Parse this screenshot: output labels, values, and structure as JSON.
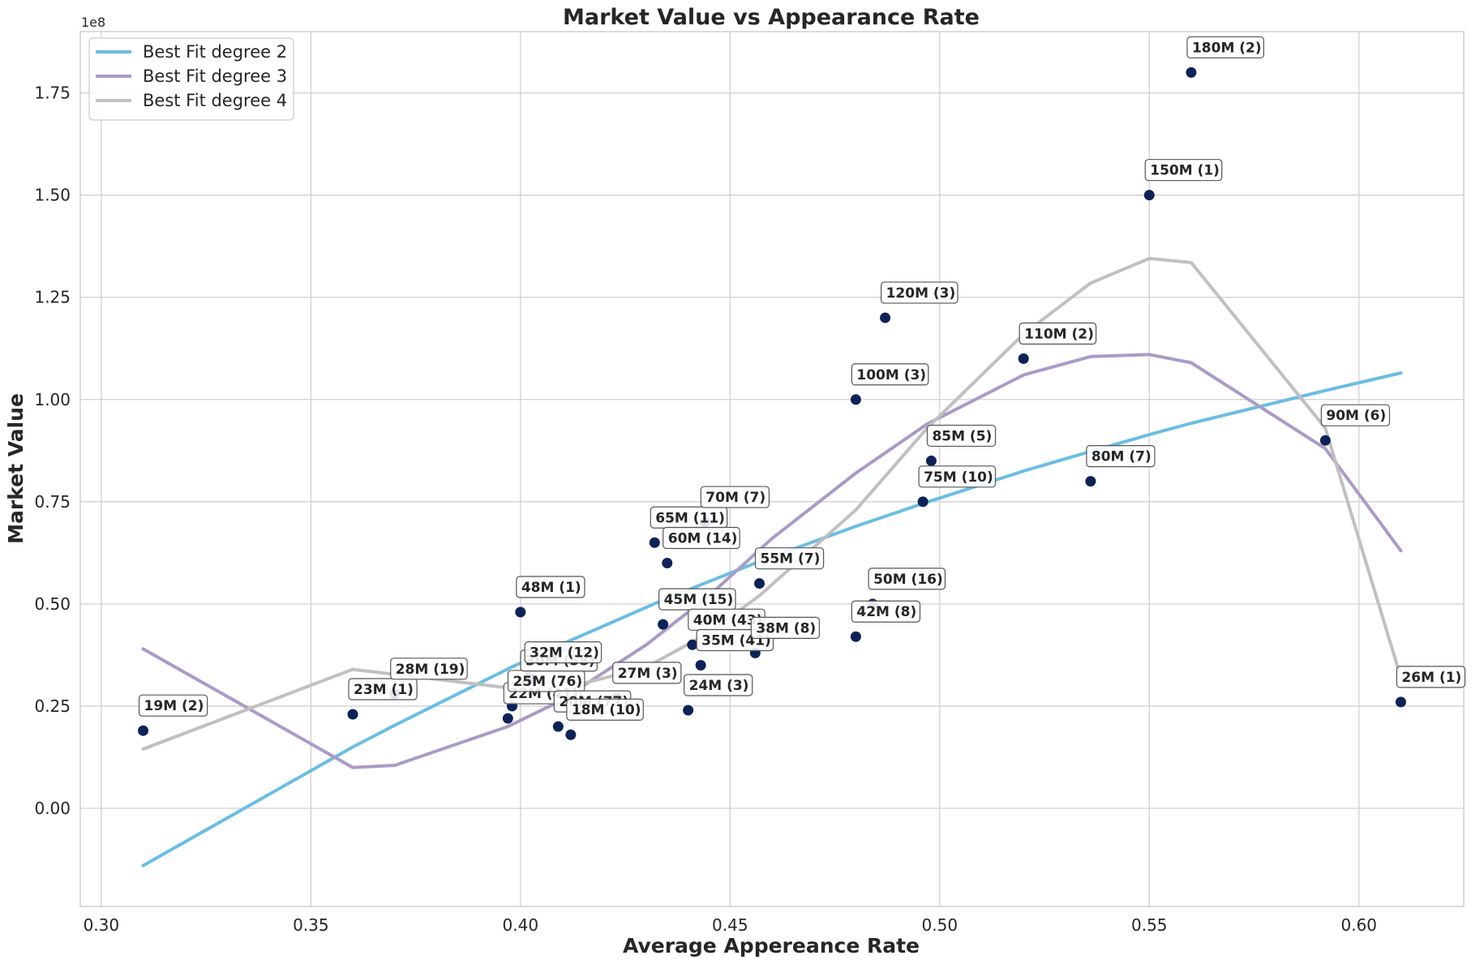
{
  "chart_data": {
    "type": "scatter",
    "title": "Market Value vs Appearance Rate",
    "xlabel": "Average Appereance Rate",
    "ylabel": "Market Value",
    "y_offset_label": "1e8",
    "y_scale": 100000000,
    "xlim": [
      0.295,
      0.625
    ],
    "ylim": [
      -0.24,
      1.9
    ],
    "x_ticks": [
      0.3,
      0.35,
      0.4,
      0.45,
      0.5,
      0.55,
      0.6
    ],
    "x_tick_labels": [
      "0.30",
      "0.35",
      "0.40",
      "0.45",
      "0.50",
      "0.55",
      "0.60"
    ],
    "y_ticks": [
      0.0,
      0.25,
      0.5,
      0.75,
      1.0,
      1.25,
      1.5,
      1.75
    ],
    "y_tick_labels": [
      "0.00",
      "0.25",
      "0.50",
      "0.75",
      "1.00",
      "1.25",
      "1.50",
      "1.75"
    ],
    "grid": true,
    "legend_position": "top-left",
    "point_color": "#0d2257",
    "points": [
      {
        "x": 0.31,
        "y": 19000000,
        "label": "19M (2)"
      },
      {
        "x": 0.36,
        "y": 23000000,
        "label": "23M (1)"
      },
      {
        "x": 0.37,
        "y": 28000000,
        "label": "28M (19)"
      },
      {
        "x": 0.397,
        "y": 22000000,
        "label": "22M (41)"
      },
      {
        "x": 0.398,
        "y": 25000000,
        "label": "25M (76)"
      },
      {
        "x": 0.4,
        "y": 48000000,
        "label": "48M (1)"
      },
      {
        "x": 0.401,
        "y": 30000000,
        "label": "30M (58)"
      },
      {
        "x": 0.402,
        "y": 32000000,
        "label": "32M (12)"
      },
      {
        "x": 0.409,
        "y": 20000000,
        "label": "20M (77)"
      },
      {
        "x": 0.412,
        "y": 18000000,
        "label": "18M (10)"
      },
      {
        "x": 0.423,
        "y": 27000000,
        "label": "27M (3)"
      },
      {
        "x": 0.432,
        "y": 65000000,
        "label": "65M (11)"
      },
      {
        "x": 0.434,
        "y": 45000000,
        "label": "45M (15)"
      },
      {
        "x": 0.435,
        "y": 60000000,
        "label": "60M (14)"
      },
      {
        "x": 0.44,
        "y": 24000000,
        "label": "24M (3)"
      },
      {
        "x": 0.441,
        "y": 40000000,
        "label": "40M (43)"
      },
      {
        "x": 0.443,
        "y": 35000000,
        "label": "35M (41)"
      },
      {
        "x": 0.444,
        "y": 70000000,
        "label": "70M (7)"
      },
      {
        "x": 0.456,
        "y": 38000000,
        "label": "38M (8)"
      },
      {
        "x": 0.457,
        "y": 55000000,
        "label": "55M (7)"
      },
      {
        "x": 0.48,
        "y": 42000000,
        "label": "42M (8)"
      },
      {
        "x": 0.48,
        "y": 100000000,
        "label": "100M (3)"
      },
      {
        "x": 0.484,
        "y": 50000000,
        "label": "50M (16)"
      },
      {
        "x": 0.487,
        "y": 120000000,
        "label": "120M (3)"
      },
      {
        "x": 0.496,
        "y": 75000000,
        "label": "75M (10)"
      },
      {
        "x": 0.498,
        "y": 85000000,
        "label": "85M (5)"
      },
      {
        "x": 0.52,
        "y": 110000000,
        "label": "110M (2)"
      },
      {
        "x": 0.536,
        "y": 80000000,
        "label": "80M (7)"
      },
      {
        "x": 0.55,
        "y": 150000000,
        "label": "150M (1)"
      },
      {
        "x": 0.56,
        "y": 180000000,
        "label": "180M (2)"
      },
      {
        "x": 0.592,
        "y": 90000000,
        "label": "90M (6)"
      },
      {
        "x": 0.61,
        "y": 26000000,
        "label": "26M (1)"
      }
    ],
    "series": [
      {
        "name": "Best Fit degree 2",
        "color": "#6bbde3",
        "x": [
          0.31,
          0.36,
          0.37,
          0.398,
          0.41,
          0.435,
          0.457,
          0.48,
          0.497,
          0.52,
          0.536,
          0.55,
          0.56,
          0.592,
          0.61
        ],
        "y": [
          -14000000,
          15000000,
          20300000,
          34600000,
          40200000,
          51400000,
          60400000,
          69000000,
          74900000,
          82500000,
          87300000,
          91400000,
          94200000,
          102200000,
          106500000
        ]
      },
      {
        "name": "Best Fit degree 3",
        "color": "#ab9ac7",
        "x": [
          0.31,
          0.36,
          0.37,
          0.397,
          0.409,
          0.43,
          0.445,
          0.46,
          0.48,
          0.497,
          0.52,
          0.536,
          0.55,
          0.56,
          0.592,
          0.61
        ],
        "y": [
          39000000,
          10000000,
          10500000,
          20000000,
          26000000,
          40000000,
          52000000,
          66000000,
          82000000,
          94000000,
          106000000,
          110500000,
          111000000,
          109000000,
          88000000,
          63000000
        ]
      },
      {
        "name": "Best Fit degree 4",
        "color": "#c0c0c0",
        "x": [
          0.31,
          0.36,
          0.397,
          0.409,
          0.43,
          0.445,
          0.457,
          0.48,
          0.497,
          0.52,
          0.536,
          0.55,
          0.56,
          0.592,
          0.61
        ],
        "y": [
          14500000,
          34000000,
          29500000,
          29000000,
          34500000,
          43000000,
          52000000,
          73000000,
          93000000,
          116000000,
          128500000,
          134500000,
          133500000,
          93000000,
          32000000
        ]
      }
    ]
  }
}
